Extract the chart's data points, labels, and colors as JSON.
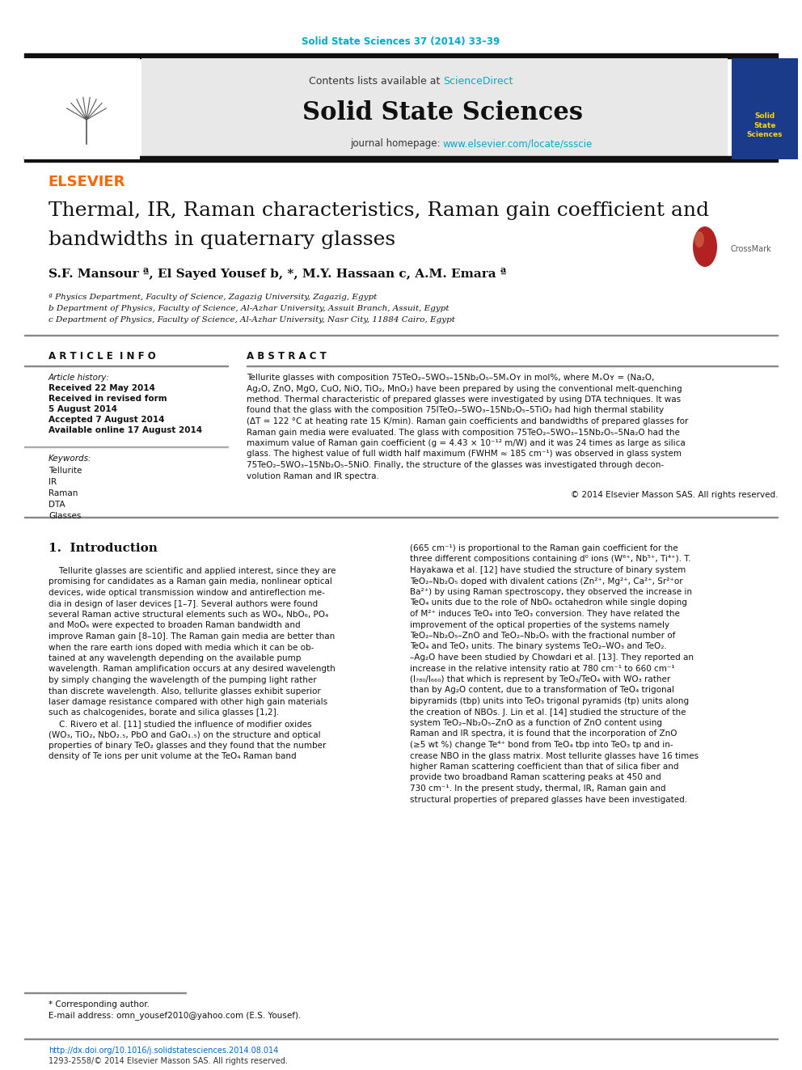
{
  "journal_ref": "Solid State Sciences 37 (2014) 33–39",
  "journal_ref_color": "#00aacc",
  "contents_text": "Contents lists available at ",
  "sciencedirect_text": "ScienceDirect",
  "sciencedirect_color": "#00aacc",
  "journal_title": "Solid State Sciences",
  "journal_homepage": "journal homepage: ",
  "journal_url": "www.elsevier.com/locate/ssscie",
  "journal_url_color": "#00aacc",
  "header_bg": "#e8e8e8",
  "black_bar_color": "#111111",
  "paper_title_line1": "Thermal, IR, Raman characteristics, Raman gain coefficient and",
  "paper_title_line2": "bandwidths in quaternary glasses",
  "authors": "S.F. Mansour ª, El Sayed Yousef b, *, M.Y. Hassaan c, A.M. Emara ª",
  "affil_a": "ª Physics Department, Faculty of Science, Zagazig University, Zagazig, Egypt",
  "affil_b": "b Department of Physics, Faculty of Science, Al-Azhar University, Assuit Branch, Assuit, Egypt",
  "affil_c": "c Department of Physics, Faculty of Science, Al-Azhar University, Nasr City, 11884 Cairo, Egypt",
  "article_info_title": "A R T I C L E  I N F O",
  "abstract_title": "A B S T R A C T",
  "article_history_label": "Article history:",
  "received_1": "Received 22 May 2014",
  "received_revised": "Received in revised form",
  "date_5aug": "5 August 2014",
  "accepted": "Accepted 7 August 2014",
  "available": "Available online 17 August 2014",
  "keywords_label": "Keywords:",
  "keywords": [
    "Tellurite",
    "IR",
    "Raman",
    "DTA",
    "Glasses"
  ],
  "copyright": "© 2014 Elsevier Masson SAS. All rights reserved.",
  "intro_title": "1.  Introduction",
  "footnote_corresponding": "* Corresponding author.",
  "footnote_email": "E-mail address: omn_yousef2010@yahoo.com (E.S. Yousef).",
  "footer_doi": "http://dx.doi.org/10.1016/j.solidstatesciences.2014.08.014",
  "footer_issn": "1293-2558/© 2014 Elsevier Masson SAS. All rights reserved.",
  "bg_color": "#ffffff",
  "text_color": "#000000",
  "abstract_lines": [
    "Tellurite glasses with composition 75TeO₂–5WO₃–15Nb₂O₅–5MₓOʏ in mol%, where MₓOʏ = (Na₂O,",
    "Ag₂O, ZnO, MgO, CuO, NiO, TiO₂, MnO₂) have been prepared by using the conventional melt-quenching",
    "method. Thermal characteristic of prepared glasses were investigated by using DTA techniques. It was",
    "found that the glass with the composition 75ITeO₂–5WO₃–15Nb₂O₅–5TiO₂ had high thermal stability",
    "(ΔT = 122 °C at heating rate 15 K/min). Raman gain coefficients and bandwidths of prepared glasses for",
    "Raman gain media were evaluated. The glass with composition 75TeO₂–5WO₃–15Nb₂O₅–5Na₂O had the",
    "maximum value of Raman gain coefficient (g = 4.43 × 10⁻¹² m/W) and it was 24 times as large as silica",
    "glass. The highest value of full width half maximum (FWHM ≈ 185 cm⁻¹) was observed in glass system",
    "75TeO₂–5WO₃–15Nb₂O₅–5NiO. Finally, the structure of the glasses was investigated through decon-",
    "volution Raman and IR spectra."
  ],
  "intro_left_lines": [
    "    Tellurite glasses are scientific and applied interest, since they are",
    "promising for candidates as a Raman gain media, nonlinear optical",
    "devices, wide optical transmission window and antireflection me-",
    "dia in design of laser devices [1–7]. Several authors were found",
    "several Raman active structural elements such as WO₄, NbO₆, PO₄",
    "and MoO₆ were expected to broaden Raman bandwidth and",
    "improve Raman gain [8–10]. The Raman gain media are better than",
    "when the rare earth ions doped with media which it can be ob-",
    "tained at any wavelength depending on the available pump",
    "wavelength. Raman amplification occurs at any desired wavelength",
    "by simply changing the wavelength of the pumping light rather",
    "than discrete wavelength. Also, tellurite glasses exhibit superior",
    "laser damage resistance compared with other high gain materials",
    "such as chalcogenides, borate and silica glasses [1,2].",
    "    C. Rivero et al. [11] studied the influence of modifier oxides",
    "(WO₃, TiO₂, NbO₂.₅, PbO and GaO₁.₅) on the structure and optical",
    "properties of binary TeO₂ glasses and they found that the number",
    "density of Te ions per unit volume at the TeO₄ Raman band"
  ],
  "intro_right_lines": [
    "(665 cm⁻¹) is proportional to the Raman gain coefficient for the",
    "three different compositions containing d⁰ ions (W⁶⁺, Nb⁵⁺, Ti⁴⁺). T.",
    "Hayakawa et al. [12] have studied the structure of binary system",
    "TeO₂–Nb₂O₅ doped with divalent cations (Zn²⁺, Mg²⁺, Ca²⁺, Sr²⁺or",
    "Ba²⁺) by using Raman spectroscopy, they observed the increase in",
    "TeO₄ units due to the role of NbO₆ octahedron while single doping",
    "of M²⁺ induces TeO₄ into TeO₃ conversion. They have related the",
    "improvement of the optical properties of the systems namely",
    "TeO₂–Nb₂O₅–ZnO and TeO₂–Nb₂O₅ with the fractional number of",
    "TeO₄ and TeO₃ units. The binary systems TeO₂–WO₃ and TeO₂.",
    "–Ag₂O have been studied by Chowdari et al. [13]. They reported an",
    "increase in the relative intensity ratio at 780 cm⁻¹ to 660 cm⁻¹",
    "(I₇₈₀/I₆₆₀) that which is represent by TeO₃/TeO₄ with WO₃ rather",
    "than by Ag₂O content, due to a transformation of TeO₄ trigonal",
    "bipyramids (tbp) units into TeO₃ trigonal pyramids (tp) units along",
    "the creation of NBOs. J. Lin et al. [14] studied the structure of the",
    "system TeO₂–Nb₂O₅–ZnO as a function of ZnO content using",
    "Raman and IR spectra, it is found that the incorporation of ZnO",
    "(≥5 wt %) change Te⁴⁺ bond from TeO₄ tbp into TeO₃ tp and in-",
    "crease NBO in the glass matrix. Most tellurite glasses have 16 times",
    "higher Raman scattering coefficient than that of silica fiber and",
    "provide two broadband Raman scattering peaks at 450 and",
    "730 cm⁻¹. In the present study, thermal, IR, Raman gain and",
    "structural properties of prepared glasses have been investigated."
  ]
}
